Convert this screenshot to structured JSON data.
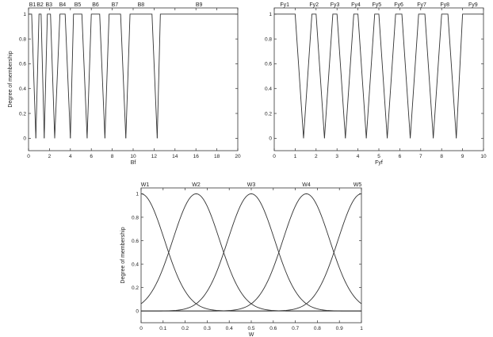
{
  "chart_data": [
    {
      "type": "line",
      "title": "",
      "xlabel": "Bf",
      "ylabel": "Degree of membership",
      "xlim": [
        0,
        20
      ],
      "ylim": [
        -0.1,
        1.05
      ],
      "xticks": [
        "0",
        "2",
        "4",
        "6",
        "8",
        "10",
        "12",
        "14",
        "16",
        "18",
        "20"
      ],
      "yticks": [
        "0",
        "0.2",
        "0.4",
        "0.6",
        "0.8",
        "1"
      ],
      "mf_type": "trapezoid",
      "series": [
        {
          "name": "B1",
          "points": [
            0,
            0,
            0.3,
            0.7
          ]
        },
        {
          "name": "B2",
          "points": [
            0.7,
            1.0,
            1.2,
            1.5
          ]
        },
        {
          "name": "B3",
          "points": [
            1.5,
            1.8,
            2.1,
            2.5
          ]
        },
        {
          "name": "B4",
          "points": [
            2.5,
            3.0,
            3.5,
            4.0
          ]
        },
        {
          "name": "B5",
          "points": [
            4.0,
            4.3,
            5.1,
            5.6
          ]
        },
        {
          "name": "B6",
          "points": [
            5.6,
            6.0,
            6.8,
            7.3
          ]
        },
        {
          "name": "B7",
          "points": [
            7.3,
            7.7,
            8.8,
            9.3
          ]
        },
        {
          "name": "B8",
          "points": [
            9.3,
            9.7,
            11.8,
            12.3
          ]
        },
        {
          "name": "B9",
          "points": [
            12.3,
            12.6,
            20,
            20
          ]
        }
      ]
    },
    {
      "type": "line",
      "title": "",
      "xlabel": "Fyf",
      "ylabel": "",
      "xlim": [
        0,
        10
      ],
      "ylim": [
        -0.1,
        1.05
      ],
      "xticks": [
        "0",
        "1",
        "2",
        "3",
        "4",
        "5",
        "6",
        "7",
        "8",
        "9",
        "10"
      ],
      "yticks": [
        "0",
        "0.2",
        "0.4",
        "0.6",
        "0.8",
        "1"
      ],
      "mf_type": "trapezoid",
      "series": [
        {
          "name": "Fy1",
          "points": [
            0,
            0,
            1.0,
            1.4
          ]
        },
        {
          "name": "Fy2",
          "points": [
            1.4,
            1.8,
            2.0,
            2.4
          ]
        },
        {
          "name": "Fy3",
          "points": [
            2.4,
            2.8,
            3.0,
            3.4
          ]
        },
        {
          "name": "Fy4",
          "points": [
            3.4,
            3.8,
            4.0,
            4.4
          ]
        },
        {
          "name": "Fy5",
          "points": [
            4.4,
            4.8,
            5.0,
            5.4
          ]
        },
        {
          "name": "Fy6",
          "points": [
            5.4,
            5.8,
            6.1,
            6.5
          ]
        },
        {
          "name": "Fy7",
          "points": [
            6.5,
            6.9,
            7.2,
            7.6
          ]
        },
        {
          "name": "Fy8",
          "points": [
            7.6,
            8.0,
            8.3,
            8.7
          ]
        },
        {
          "name": "Fy9",
          "points": [
            8.7,
            9.0,
            10,
            10
          ]
        }
      ]
    },
    {
      "type": "line",
      "title": "",
      "xlabel": "W",
      "ylabel": "Degree of membership",
      "xlim": [
        0,
        1
      ],
      "ylim": [
        -0.1,
        1.05
      ],
      "xticks": [
        "0",
        "0.1",
        "0.2",
        "0.3",
        "0.4",
        "0.5",
        "0.6",
        "0.7",
        "0.8",
        "0.9",
        "1"
      ],
      "yticks": [
        "0",
        "0.2",
        "0.4",
        "0.6",
        "0.8",
        "1"
      ],
      "mf_type": "gaussian",
      "sigma": 0.106,
      "series": [
        {
          "name": "W1",
          "center": 0
        },
        {
          "name": "W2",
          "center": 0.25
        },
        {
          "name": "W3",
          "center": 0.5
        },
        {
          "name": "W4",
          "center": 0.75
        },
        {
          "name": "W5",
          "center": 1
        }
      ]
    }
  ]
}
